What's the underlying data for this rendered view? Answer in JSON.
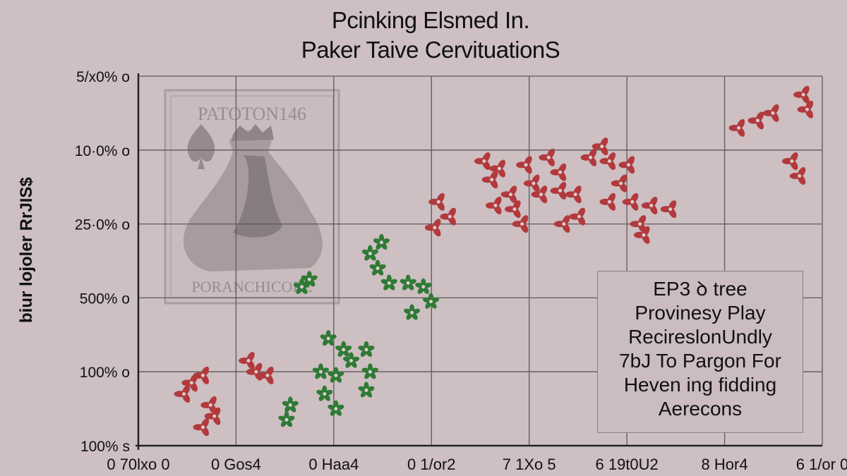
{
  "chart_data": {
    "type": "scatter",
    "title_lines": [
      "Pcinking Elsmed In.",
      "Paker Taive CervituationS"
    ],
    "ylabel": "biur lojoler RrJIS$",
    "xlabel": "",
    "y_tick_labels": [
      "5/x0% o",
      "10·0% o",
      "25·0% o",
      "500% o",
      "100% o",
      "100% s"
    ],
    "x_tick_labels": [
      "0 70lxo 0",
      "0 Gos4",
      "0 Haa4",
      "0 1/or2",
      "7 1Xo 5",
      "6 19t0U2",
      "8 Hor4",
      "6 1/or 0"
    ],
    "xlim": [
      0,
      9
    ],
    "ylim": [
      0,
      5
    ],
    "grid": true,
    "series": [
      {
        "color": "#b2393c",
        "points": [
          [
            0.7,
            0.85
          ],
          [
            0.85,
            0.95
          ],
          [
            0.6,
            0.7
          ],
          [
            0.95,
            0.55
          ],
          [
            1.0,
            0.4
          ],
          [
            0.85,
            0.25
          ],
          [
            1.55,
            1.0
          ],
          [
            1.45,
            1.15
          ],
          [
            1.7,
            0.95
          ],
          [
            3.95,
            3.3
          ],
          [
            4.1,
            3.1
          ],
          [
            3.9,
            2.95
          ],
          [
            4.55,
            3.85
          ],
          [
            4.75,
            3.75
          ],
          [
            4.65,
            3.6
          ],
          [
            4.9,
            3.4
          ],
          [
            4.7,
            3.25
          ],
          [
            4.95,
            3.2
          ],
          [
            5.05,
            3.0
          ],
          [
            5.2,
            3.55
          ],
          [
            5.3,
            3.4
          ],
          [
            5.1,
            3.8
          ],
          [
            5.4,
            3.9
          ],
          [
            5.55,
            3.7
          ],
          [
            5.55,
            3.45
          ],
          [
            5.75,
            3.4
          ],
          [
            5.8,
            3.1
          ],
          [
            5.6,
            3.0
          ],
          [
            5.95,
            3.9
          ],
          [
            6.1,
            4.05
          ],
          [
            6.2,
            3.85
          ],
          [
            6.45,
            3.8
          ],
          [
            6.2,
            3.3
          ],
          [
            6.35,
            3.55
          ],
          [
            6.5,
            3.3
          ],
          [
            6.75,
            3.25
          ],
          [
            7.0,
            3.2
          ],
          [
            6.6,
            3.0
          ],
          [
            6.65,
            2.85
          ],
          [
            7.9,
            4.3
          ],
          [
            8.15,
            4.4
          ],
          [
            8.35,
            4.5
          ],
          [
            8.75,
            4.75
          ],
          [
            8.8,
            4.55
          ],
          [
            8.6,
            3.85
          ],
          [
            8.7,
            3.65
          ]
        ]
      },
      {
        "color": "#2f7a34",
        "points": [
          [
            1.95,
            0.35
          ],
          [
            2.0,
            0.55
          ],
          [
            2.25,
            2.25
          ],
          [
            2.15,
            2.15
          ],
          [
            2.5,
            1.45
          ],
          [
            2.7,
            1.3
          ],
          [
            2.4,
            1.0
          ],
          [
            2.6,
            0.95
          ],
          [
            2.45,
            0.7
          ],
          [
            2.6,
            0.5
          ],
          [
            2.8,
            1.15
          ],
          [
            3.0,
            1.3
          ],
          [
            3.05,
            1.0
          ],
          [
            3.0,
            0.75
          ],
          [
            3.05,
            2.6
          ],
          [
            3.2,
            2.75
          ],
          [
            3.15,
            2.4
          ],
          [
            3.3,
            2.2
          ],
          [
            3.55,
            2.2
          ],
          [
            3.75,
            2.15
          ],
          [
            3.85,
            1.95
          ],
          [
            3.6,
            1.8
          ]
        ]
      }
    ]
  },
  "watermark": {
    "label": "PATOTON146",
    "footer": "PORANCHICORE"
  },
  "note": {
    "lines": [
      "EP3 ꝺ tree",
      "Provinesy Play",
      "RecireslonUndly",
      "7bJ To Pargon For",
      "Heven ing fidding",
      "Aerecons"
    ]
  },
  "colors": {
    "background": "#cdbfc2",
    "grid": "#5d5a5b",
    "red": "#b2393c",
    "green": "#2f7a34"
  }
}
